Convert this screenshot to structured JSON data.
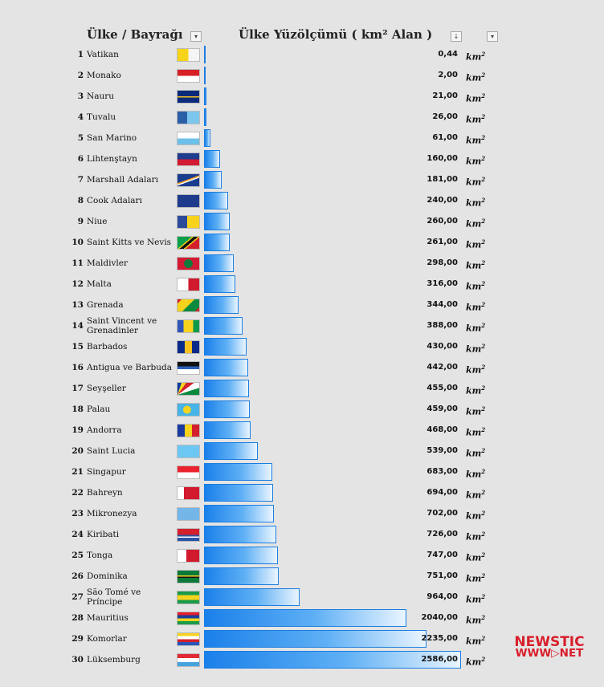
{
  "header": {
    "country_col": "Ülke / Bayrağı",
    "area_col": "Ülke Yüzölçümü ( km² Alan )",
    "filter_icon": "▾",
    "sort_icon": "↓"
  },
  "unit": {
    "base": "km",
    "exp": "2"
  },
  "logo": {
    "line1": "NEWSTIC",
    "line2": "WWW▷NET",
    "color": "#d81e2a"
  },
  "bar_color": "#1a80ea",
  "chart_data": {
    "type": "bar",
    "orientation": "horizontal",
    "title": "Ülke Yüzölçümü ( km² Alan )",
    "xlim": [
      0,
      2586
    ],
    "grid": false,
    "categories": [
      "Vatikan",
      "Monako",
      "Nauru",
      "Tuvalu",
      "San Marino",
      "Lihtenştayn",
      "Marshall Adaları",
      "Cook Adaları",
      "Niue",
      "Saint Kitts ve Nevis",
      "Maldivler",
      "Malta",
      "Grenada",
      "Saint Vincent ve Grenadinler",
      "Barbados",
      "Antigua ve Barbuda",
      "Seyşeller",
      "Palau",
      "Andorra",
      "Saint Lucia",
      "Singapur",
      "Bahreyn",
      "Mikronezya",
      "Kiribati",
      "Tonga",
      "Dominika",
      "São Tomé ve Príncipe",
      "Mauritius",
      "Komorlar",
      "Lüksemburg"
    ],
    "ranks": [
      "1",
      "2",
      "3",
      "4",
      "5",
      "6",
      "7",
      "8",
      "9",
      "10",
      "11",
      "12",
      "13",
      "14",
      "15",
      "16",
      "17",
      "18",
      "19",
      "20",
      "21",
      "22",
      "23",
      "24",
      "25",
      "26",
      "27",
      "28",
      "29",
      "30"
    ],
    "values": [
      0.44,
      2,
      21,
      26,
      61,
      160,
      181,
      240,
      260,
      261,
      298,
      316,
      344,
      388,
      430,
      442,
      455,
      459,
      468,
      539,
      683,
      694,
      702,
      726,
      747,
      751,
      964,
      2040,
      2235,
      2586
    ],
    "value_labels": [
      "0,44",
      "2,00",
      "21,00",
      "26,00",
      "61,00",
      "160,00",
      "181,00",
      "240,00",
      "260,00",
      "261,00",
      "298,00",
      "316,00",
      "344,00",
      "388,00",
      "430,00",
      "442,00",
      "455,00",
      "459,00",
      "468,00",
      "539,00",
      "683,00",
      "694,00",
      "702,00",
      "726,00",
      "747,00",
      "751,00",
      "964,00",
      "2040,00",
      "2235,00",
      "2586,00"
    ],
    "flags": [
      "vatican-flag",
      "monaco-flag",
      "nauru-flag",
      "tuvalu-flag",
      "san-marino-flag",
      "liechtenstein-flag",
      "marshall-islands-flag",
      "cook-islands-flag",
      "niue-flag",
      "saint-kitts-and-nevis-flag",
      "maldives-flag",
      "malta-flag",
      "grenada-flag",
      "saint-vincent-flag",
      "barbados-flag",
      "antigua-and-barbuda-flag",
      "seychelles-flag",
      "palau-flag",
      "andorra-flag",
      "saint-lucia-flag",
      "singapore-flag",
      "bahrain-flag",
      "micronesia-flag",
      "kiribati-flag",
      "tonga-flag",
      "dominica-flag",
      "sao-tome-and-principe-flag",
      "mauritius-flag",
      "comoros-flag",
      "luxembourg-flag"
    ]
  }
}
